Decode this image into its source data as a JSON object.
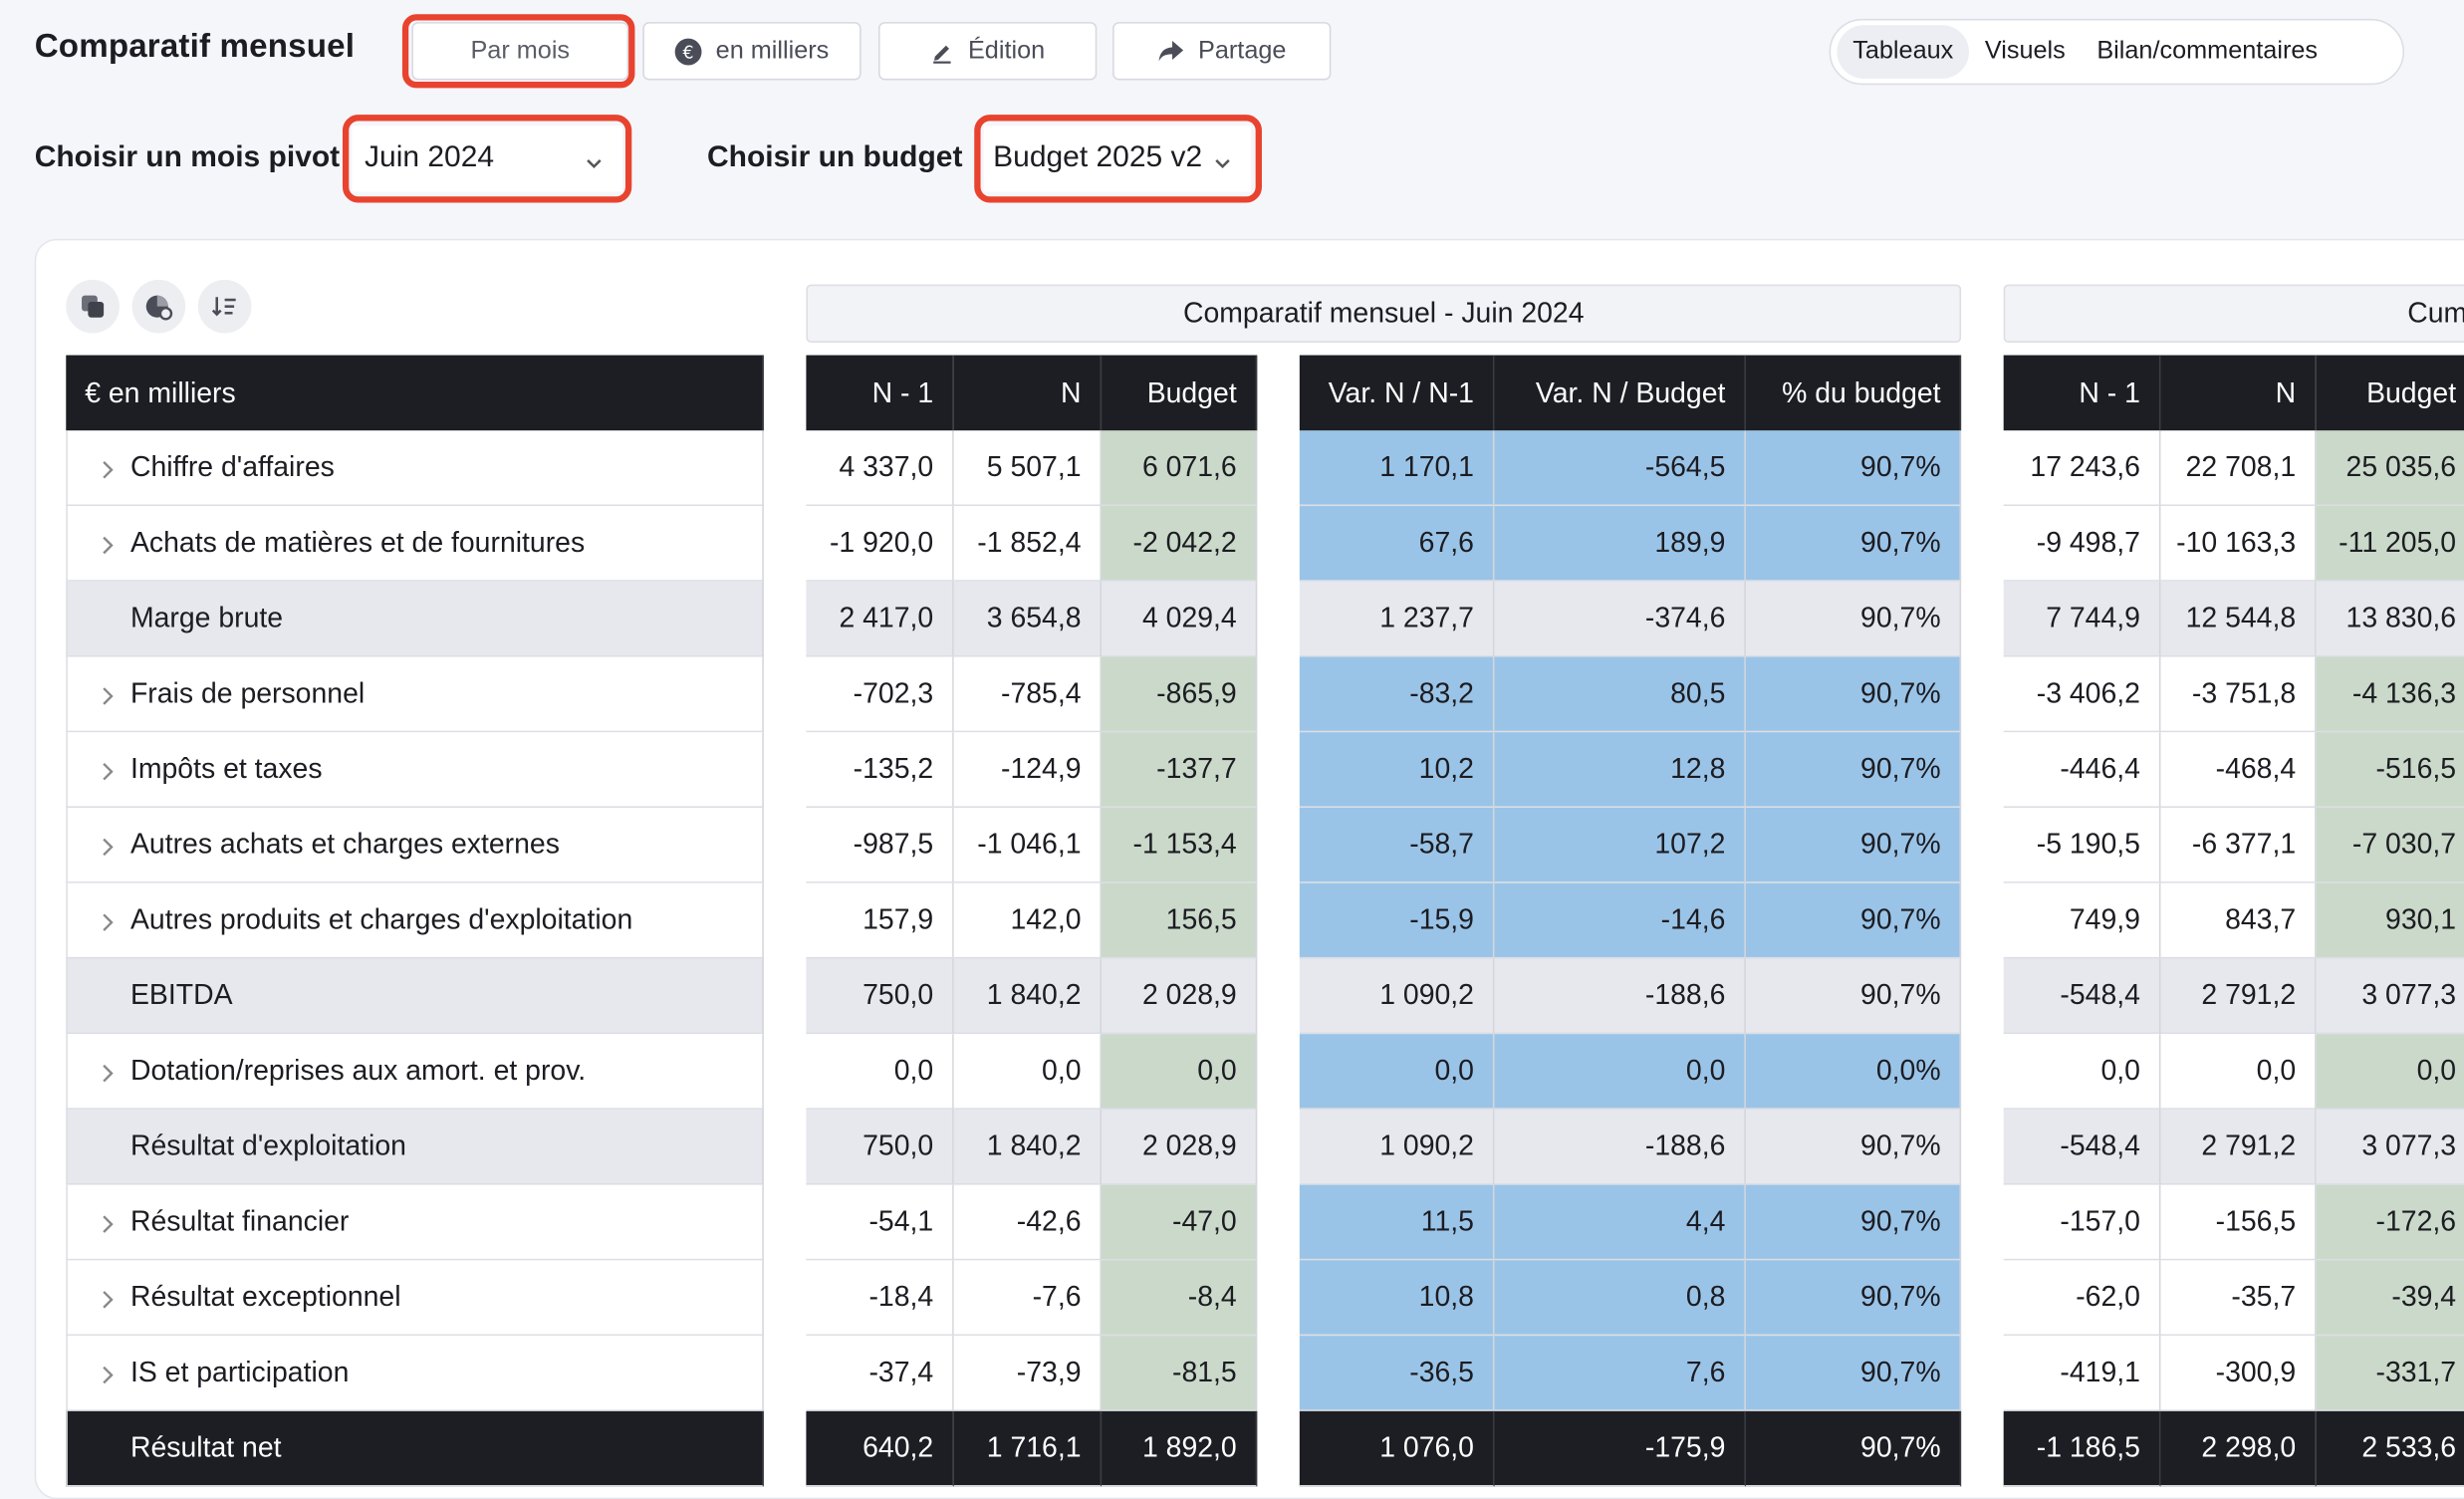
{
  "header": {
    "title": "Comparatif mensuel",
    "buttons": [
      {
        "label": "Par mois",
        "icon": ""
      },
      {
        "label": "en milliers",
        "icon": "euro-coin-icon"
      },
      {
        "label": "Édition",
        "icon": "pen-icon"
      },
      {
        "label": "Partage",
        "icon": "share-arrow-icon"
      }
    ],
    "view_tabs": [
      "Tableaux",
      "Visuels",
      "Bilan/commentaires"
    ],
    "active_view_tab": "Tableaux"
  },
  "filters": {
    "pivot_label": "Choisir un mois pivot",
    "pivot_value": "Juin 2024",
    "budget_label": "Choisir un budget",
    "budget_value": "Budget 2025 v2"
  },
  "toolbar_icons": [
    "copy-icon",
    "chart-settings-icon",
    "sort-lines-icon"
  ],
  "table": {
    "unit_header": "€ en milliers",
    "group_headers": [
      "Comparatif mensuel - Juin 2024",
      "Cum"
    ],
    "col_headers": [
      "N - 1",
      "N",
      "Budget",
      "Var. N / N-1",
      "Var. N / Budget",
      "% du budget",
      "N - 1",
      "N",
      "Budget"
    ],
    "rows": [
      {
        "label": "Chiffre d'affaires",
        "expandable": true,
        "type": "normal",
        "v": [
          "4 337,0",
          "5 507,1",
          "6 071,6",
          "1 170,1",
          "-564,5",
          "90,7%",
          "17 243,6",
          "22 708,1",
          "25 035,6"
        ]
      },
      {
        "label": "Achats de matières et de fournitures",
        "expandable": true,
        "type": "normal",
        "v": [
          "-1 920,0",
          "-1 852,4",
          "-2 042,2",
          "67,6",
          "189,9",
          "90,7%",
          "-9 498,7",
          "-10 163,3",
          "-11 205,0"
        ]
      },
      {
        "label": "Marge brute",
        "expandable": false,
        "type": "subtotal",
        "v": [
          "2 417,0",
          "3 654,8",
          "4 029,4",
          "1 237,7",
          "-374,6",
          "90,7%",
          "7 744,9",
          "12 544,8",
          "13 830,6"
        ]
      },
      {
        "label": "Frais de personnel",
        "expandable": true,
        "type": "normal",
        "v": [
          "-702,3",
          "-785,4",
          "-865,9",
          "-83,2",
          "80,5",
          "90,7%",
          "-3 406,2",
          "-3 751,8",
          "-4 136,3"
        ]
      },
      {
        "label": "Impôts et taxes",
        "expandable": true,
        "type": "normal",
        "v": [
          "-135,2",
          "-124,9",
          "-137,7",
          "10,2",
          "12,8",
          "90,7%",
          "-446,4",
          "-468,4",
          "-516,5"
        ]
      },
      {
        "label": "Autres achats et charges externes",
        "expandable": true,
        "type": "normal",
        "v": [
          "-987,5",
          "-1 046,1",
          "-1 153,4",
          "-58,7",
          "107,2",
          "90,7%",
          "-5 190,5",
          "-6 377,1",
          "-7 030,7"
        ]
      },
      {
        "label": "Autres produits et charges d'exploitation",
        "expandable": true,
        "type": "normal",
        "v": [
          "157,9",
          "142,0",
          "156,5",
          "-15,9",
          "-14,6",
          "90,7%",
          "749,9",
          "843,7",
          "930,1"
        ]
      },
      {
        "label": "EBITDA",
        "expandable": false,
        "type": "subtotal",
        "v": [
          "750,0",
          "1 840,2",
          "2 028,9",
          "1 090,2",
          "-188,6",
          "90,7%",
          "-548,4",
          "2 791,2",
          "3 077,3"
        ]
      },
      {
        "label": "Dotation/reprises aux amort. et prov.",
        "expandable": true,
        "type": "normal",
        "v": [
          "0,0",
          "0,0",
          "0,0",
          "0,0",
          "0,0",
          "0,0%",
          "0,0",
          "0,0",
          "0,0"
        ]
      },
      {
        "label": "Résultat d'exploitation",
        "expandable": false,
        "type": "subtotal",
        "v": [
          "750,0",
          "1 840,2",
          "2 028,9",
          "1 090,2",
          "-188,6",
          "90,7%",
          "-548,4",
          "2 791,2",
          "3 077,3"
        ]
      },
      {
        "label": "Résultat financier",
        "expandable": true,
        "type": "normal",
        "v": [
          "-54,1",
          "-42,6",
          "-47,0",
          "11,5",
          "4,4",
          "90,7%",
          "-157,0",
          "-156,5",
          "-172,6"
        ]
      },
      {
        "label": "Résultat exceptionnel",
        "expandable": true,
        "type": "normal",
        "v": [
          "-18,4",
          "-7,6",
          "-8,4",
          "10,8",
          "0,8",
          "90,7%",
          "-62,0",
          "-35,7",
          "-39,4"
        ]
      },
      {
        "label": "IS et participation",
        "expandable": true,
        "type": "normal",
        "v": [
          "-37,4",
          "-73,9",
          "-81,5",
          "-36,5",
          "7,6",
          "90,7%",
          "-419,1",
          "-300,9",
          "-331,7"
        ]
      },
      {
        "label": "Résultat net",
        "expandable": false,
        "type": "net",
        "v": [
          "640,2",
          "1 716,1",
          "1 892,0",
          "1 076,0",
          "-175,9",
          "90,7%",
          "-1 186,5",
          "2 298,0",
          "2 533,6"
        ]
      }
    ]
  },
  "colors": {
    "highlight": "#e8432e",
    "variance_fill": "#9ac4e7",
    "budget_fill": "#cad9c9",
    "subtotal_fill": "#e6e8ee",
    "header_fill": "#1d1e23"
  }
}
